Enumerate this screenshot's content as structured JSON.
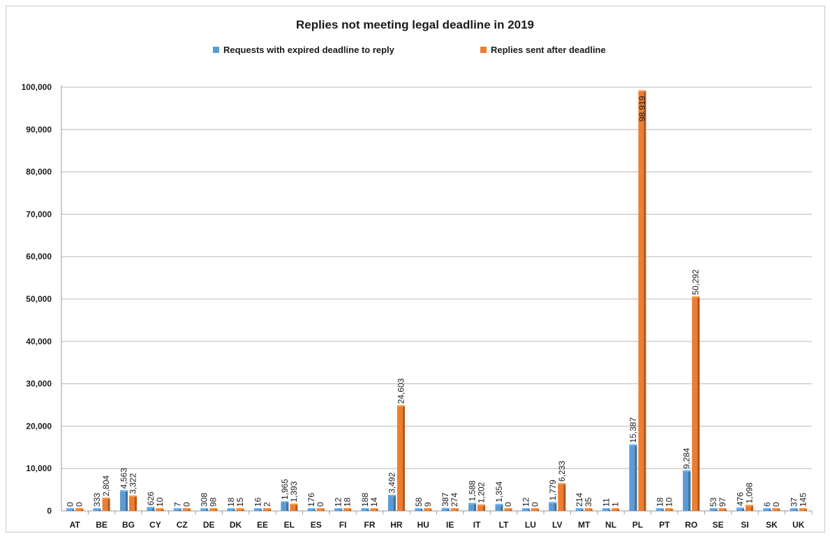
{
  "chart_data": {
    "type": "bar",
    "title": "Replies not meeting legal deadline in 2019",
    "legend_position": "top",
    "grid": true,
    "ylim": [
      0,
      100000
    ],
    "yticks": [
      "0",
      "10,000",
      "20,000",
      "30,000",
      "40,000",
      "50,000",
      "60,000",
      "70,000",
      "80,000",
      "90,000",
      "100,000"
    ],
    "categories": [
      "AT",
      "BE",
      "BG",
      "CY",
      "CZ",
      "DE",
      "DK",
      "EE",
      "EL",
      "ES",
      "FI",
      "FR",
      "HR",
      "HU",
      "IE",
      "IT",
      "LT",
      "LU",
      "LV",
      "MT",
      "NL",
      "PL",
      "PT",
      "RO",
      "SE",
      "SI",
      "SK",
      "UK"
    ],
    "series": [
      {
        "name": "Requests with expired deadline to reply",
        "color": "#5b9bd5",
        "values": [
          0,
          333,
          4563,
          626,
          7,
          308,
          18,
          16,
          1965,
          176,
          12,
          188,
          3492,
          58,
          387,
          1588,
          1354,
          12,
          1779,
          214,
          11,
          15387,
          18,
          9284,
          53,
          476,
          6,
          37
        ],
        "labels": [
          "0",
          "333",
          "4,563",
          "626",
          "7",
          "308",
          "18",
          "16",
          "1,965",
          "176",
          "12",
          "188",
          "3,492",
          "58",
          "387",
          "1,588",
          "1,354",
          "12",
          "1,779",
          "214",
          "11",
          "15,387",
          "18",
          "9,284",
          "53",
          "476",
          "6",
          "37"
        ]
      },
      {
        "name": "Replies sent after deadline",
        "color": "#ed7d31",
        "values": [
          0,
          2804,
          3322,
          10,
          0,
          98,
          15,
          2,
          1393,
          0,
          18,
          14,
          24603,
          9,
          274,
          1202,
          0,
          0,
          6233,
          35,
          1,
          98919,
          10,
          50292,
          97,
          1098,
          0,
          145
        ],
        "labels": [
          "0",
          "2,804",
          "3,322",
          "10",
          "0",
          "98",
          "15",
          "2",
          "1,393",
          "0",
          "18",
          "14",
          "24,603",
          "9",
          "274",
          "1,202",
          "0",
          "0",
          "6,233",
          "35",
          "1",
          "98,919",
          "10",
          "50,292",
          "97",
          "1,098",
          "0",
          "145"
        ]
      }
    ]
  }
}
